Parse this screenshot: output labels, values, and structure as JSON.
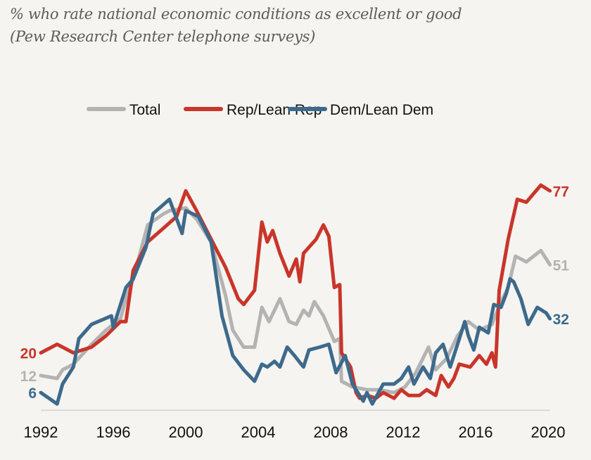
{
  "chart_data": {
    "type": "line",
    "title": "% who rate national economic conditions as excellent or good",
    "subtitle": "(Pew Research Center telephone surveys)",
    "xlabel": "",
    "ylabel": "",
    "xlim": [
      1992,
      2020.1
    ],
    "ylim": [
      0,
      80
    ],
    "grid": false,
    "legend_position": "top-center",
    "x_ticks": [
      "1992",
      "1996",
      "2000",
      "2004",
      "2008",
      "2012",
      "2016",
      "2020"
    ],
    "x_tick_values": [
      1992,
      1996,
      2000,
      2004,
      2008,
      2012,
      2016,
      2020
    ],
    "series": [
      {
        "name": "Total",
        "color": "#b3b3b3",
        "start_label": "12",
        "end_label": "51",
        "points": [
          [
            1992.0,
            12
          ],
          [
            1992.9,
            11
          ],
          [
            1993.2,
            14
          ],
          [
            1993.8,
            16
          ],
          [
            1994.8,
            23
          ],
          [
            1995.6,
            28
          ],
          [
            1996.4,
            32
          ],
          [
            1996.7,
            39
          ],
          [
            1997.1,
            46
          ],
          [
            1997.9,
            65
          ],
          [
            1998.8,
            69
          ],
          [
            1999.1,
            70
          ],
          [
            2000.0,
            71
          ],
          [
            2000.6,
            67
          ],
          [
            2001.4,
            59
          ],
          [
            2002.2,
            40
          ],
          [
            2002.6,
            28
          ],
          [
            2003.2,
            22
          ],
          [
            2003.8,
            22
          ],
          [
            2004.2,
            36
          ],
          [
            2004.6,
            31
          ],
          [
            2005.2,
            39
          ],
          [
            2005.7,
            31
          ],
          [
            2006.1,
            30
          ],
          [
            2006.5,
            35
          ],
          [
            2006.8,
            33
          ],
          [
            2007.1,
            38
          ],
          [
            2007.6,
            33
          ],
          [
            2008.2,
            24
          ],
          [
            2008.5,
            25
          ],
          [
            2008.6,
            10
          ],
          [
            2009.2,
            8
          ],
          [
            2010.0,
            7
          ],
          [
            2010.7,
            7
          ],
          [
            2011.5,
            6
          ],
          [
            2012.1,
            8
          ],
          [
            2012.7,
            13
          ],
          [
            2013.4,
            22
          ],
          [
            2013.8,
            14
          ],
          [
            2014.4,
            18
          ],
          [
            2015.0,
            26
          ],
          [
            2015.6,
            31
          ],
          [
            2016.2,
            28
          ],
          [
            2016.9,
            30
          ],
          [
            2017.4,
            38
          ],
          [
            2017.8,
            43
          ],
          [
            2018.2,
            54
          ],
          [
            2018.8,
            52
          ],
          [
            2019.6,
            56
          ],
          [
            2020.1,
            51
          ]
        ]
      },
      {
        "name": "Rep/Lean Rep",
        "color": "#c9352a",
        "start_label": "20",
        "end_label": "77",
        "points": [
          [
            1992.0,
            20
          ],
          [
            1992.9,
            23
          ],
          [
            1993.8,
            20
          ],
          [
            1994.8,
            22
          ],
          [
            1995.6,
            26
          ],
          [
            1996.4,
            31
          ],
          [
            1996.7,
            31
          ],
          [
            1997.1,
            49
          ],
          [
            1997.9,
            59
          ],
          [
            1998.8,
            64
          ],
          [
            1999.5,
            68
          ],
          [
            2000.0,
            77
          ],
          [
            2000.6,
            70
          ],
          [
            2001.4,
            60
          ],
          [
            2002.2,
            50
          ],
          [
            2002.9,
            39
          ],
          [
            2003.2,
            37
          ],
          [
            2003.8,
            42
          ],
          [
            2004.2,
            66
          ],
          [
            2004.5,
            59
          ],
          [
            2004.8,
            63
          ],
          [
            2005.2,
            55
          ],
          [
            2005.7,
            47
          ],
          [
            2006.1,
            53
          ],
          [
            2006.3,
            45
          ],
          [
            2006.5,
            55
          ],
          [
            2007.2,
            60
          ],
          [
            2007.6,
            65
          ],
          [
            2007.9,
            61
          ],
          [
            2008.2,
            43
          ],
          [
            2008.5,
            44
          ],
          [
            2008.6,
            20
          ],
          [
            2009.1,
            15
          ],
          [
            2009.4,
            6
          ],
          [
            2009.6,
            4
          ],
          [
            2010.0,
            5
          ],
          [
            2010.5,
            4
          ],
          [
            2010.9,
            6
          ],
          [
            2011.5,
            4
          ],
          [
            2011.9,
            7
          ],
          [
            2012.3,
            5
          ],
          [
            2012.9,
            5
          ],
          [
            2013.3,
            7
          ],
          [
            2013.8,
            5
          ],
          [
            2014.1,
            12
          ],
          [
            2014.5,
            8
          ],
          [
            2014.8,
            11
          ],
          [
            2015.1,
            16
          ],
          [
            2015.7,
            15
          ],
          [
            2016.2,
            19
          ],
          [
            2016.6,
            16
          ],
          [
            2016.9,
            20
          ],
          [
            2017.1,
            15
          ],
          [
            2017.3,
            42
          ],
          [
            2017.8,
            60
          ],
          [
            2018.3,
            74
          ],
          [
            2018.8,
            73
          ],
          [
            2019.6,
            79
          ],
          [
            2020.1,
            77
          ]
        ]
      },
      {
        "name": "Dem/Lean Dem",
        "color": "#3d6a8c",
        "start_label": "6",
        "end_label": "32",
        "points": [
          [
            1992.0,
            6
          ],
          [
            1992.9,
            2
          ],
          [
            1993.2,
            9
          ],
          [
            1993.8,
            15
          ],
          [
            1994.1,
            25
          ],
          [
            1994.8,
            30
          ],
          [
            1995.9,
            33
          ],
          [
            1996.0,
            29
          ],
          [
            1996.7,
            43
          ],
          [
            1997.1,
            46
          ],
          [
            1997.8,
            57
          ],
          [
            1998.2,
            69
          ],
          [
            1999.1,
            74
          ],
          [
            1999.8,
            62
          ],
          [
            2000.0,
            70
          ],
          [
            2000.7,
            68
          ],
          [
            2001.4,
            59
          ],
          [
            2002.0,
            33
          ],
          [
            2002.6,
            19
          ],
          [
            2003.2,
            14
          ],
          [
            2003.8,
            10
          ],
          [
            2004.2,
            16
          ],
          [
            2004.5,
            15
          ],
          [
            2004.9,
            17
          ],
          [
            2005.2,
            15
          ],
          [
            2005.6,
            22
          ],
          [
            2006.0,
            19
          ],
          [
            2006.5,
            15
          ],
          [
            2006.8,
            21
          ],
          [
            2007.4,
            22
          ],
          [
            2007.9,
            23
          ],
          [
            2008.3,
            13
          ],
          [
            2008.8,
            19
          ],
          [
            2009.2,
            9
          ],
          [
            2009.4,
            7
          ],
          [
            2009.8,
            3
          ],
          [
            2010.0,
            6
          ],
          [
            2010.3,
            2
          ],
          [
            2010.9,
            9
          ],
          [
            2011.5,
            9
          ],
          [
            2011.9,
            11
          ],
          [
            2012.3,
            15
          ],
          [
            2012.6,
            9
          ],
          [
            2013.1,
            15
          ],
          [
            2013.5,
            11
          ],
          [
            2013.8,
            20
          ],
          [
            2014.2,
            23
          ],
          [
            2014.6,
            15
          ],
          [
            2015.0,
            23
          ],
          [
            2015.4,
            31
          ],
          [
            2015.6,
            26
          ],
          [
            2015.9,
            21
          ],
          [
            2016.2,
            29
          ],
          [
            2016.7,
            27
          ],
          [
            2017.0,
            37
          ],
          [
            2017.4,
            36
          ],
          [
            2017.7,
            41
          ],
          [
            2017.9,
            46
          ],
          [
            2018.1,
            45
          ],
          [
            2018.5,
            39
          ],
          [
            2018.9,
            30
          ],
          [
            2019.4,
            36
          ],
          [
            2019.9,
            34
          ],
          [
            2020.1,
            32
          ]
        ]
      }
    ]
  }
}
